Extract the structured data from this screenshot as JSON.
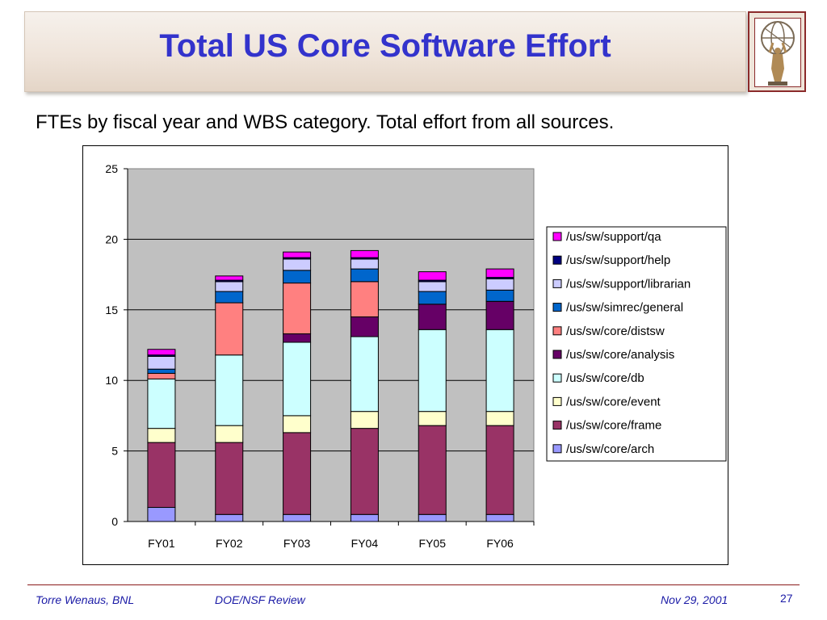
{
  "slide": {
    "title": "Total US Core Software Effort",
    "subtitle": "FTEs by fiscal year and WBS category. Total effort from all sources."
  },
  "footer": {
    "author": "Torre Wenaus, BNL",
    "event": "DOE/NSF Review",
    "date": "Nov 29, 2001",
    "page": "27"
  },
  "chart_data": {
    "type": "bar",
    "stacked": true,
    "title": "",
    "xlabel": "",
    "ylabel": "",
    "ylim": [
      0,
      25
    ],
    "yticks": [
      0,
      5,
      10,
      15,
      20,
      25
    ],
    "grid": true,
    "legend_position": "right",
    "plot_background": "#c0c0c0",
    "categories": [
      "FY01",
      "FY02",
      "FY03",
      "FY04",
      "FY05",
      "FY06"
    ],
    "series": [
      {
        "name": "/us/sw/core/arch",
        "color": "#9999ff",
        "values": [
          1.0,
          0.5,
          0.5,
          0.5,
          0.5,
          0.5
        ]
      },
      {
        "name": "/us/sw/core/frame",
        "color": "#993366",
        "values": [
          4.6,
          5.1,
          5.8,
          6.1,
          6.3,
          6.3
        ]
      },
      {
        "name": "/us/sw/core/event",
        "color": "#ffffcc",
        "values": [
          1.0,
          1.2,
          1.2,
          1.2,
          1.0,
          1.0
        ]
      },
      {
        "name": "/us/sw/core/db",
        "color": "#ccffff",
        "values": [
          3.5,
          5.0,
          5.2,
          5.3,
          5.8,
          5.8
        ]
      },
      {
        "name": "/us/sw/core/analysis",
        "color": "#660066",
        "values": [
          0.0,
          0.0,
          0.6,
          1.4,
          1.8,
          2.0
        ]
      },
      {
        "name": "/us/sw/core/distsw",
        "color": "#ff8080",
        "values": [
          0.4,
          3.7,
          3.6,
          2.5,
          0.0,
          0.0
        ]
      },
      {
        "name": "/us/sw/simrec/general",
        "color": "#0066cc",
        "values": [
          0.3,
          0.8,
          0.9,
          0.9,
          0.9,
          0.8
        ]
      },
      {
        "name": "/us/sw/support/librarian",
        "color": "#ccccff",
        "values": [
          0.9,
          0.7,
          0.8,
          0.7,
          0.7,
          0.8
        ]
      },
      {
        "name": "/us/sw/support/help",
        "color": "#000080",
        "values": [
          0.1,
          0.1,
          0.1,
          0.1,
          0.1,
          0.1
        ]
      },
      {
        "name": "/us/sw/support/qa",
        "color": "#ff00ff",
        "values": [
          0.4,
          0.3,
          0.4,
          0.5,
          0.6,
          0.6
        ]
      }
    ]
  }
}
